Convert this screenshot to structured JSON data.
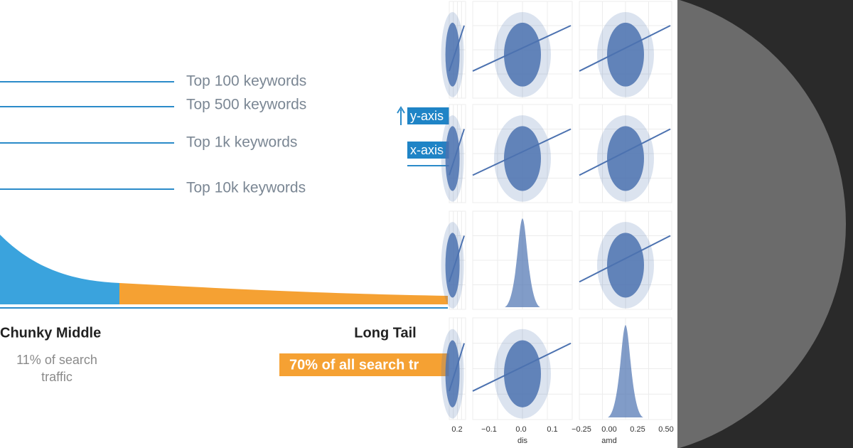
{
  "long_tail": {
    "keyword_lines": [
      "Top 100 keywords",
      "Top 500 keywords",
      "Top 1k keywords",
      "Top 10k keywords"
    ],
    "axis_tags": [
      "y-axis",
      "x-axis"
    ],
    "chunky_middle": {
      "title": "Chunky Middle",
      "caption_lines": [
        "11% of search",
        "traffic"
      ]
    },
    "long_tail": {
      "title": "Long Tail",
      "banner": "70% of all search tr"
    }
  },
  "pair_plot": {
    "x_ticks_col1": [
      "0.2"
    ],
    "x_ticks_col2": [
      "−0.1",
      "0.0",
      "0.1"
    ],
    "x_ticks_col3": [
      "−0.25",
      "0.00",
      "0.25",
      "0.50"
    ],
    "x_labels": [
      "dis",
      "amd"
    ]
  }
}
